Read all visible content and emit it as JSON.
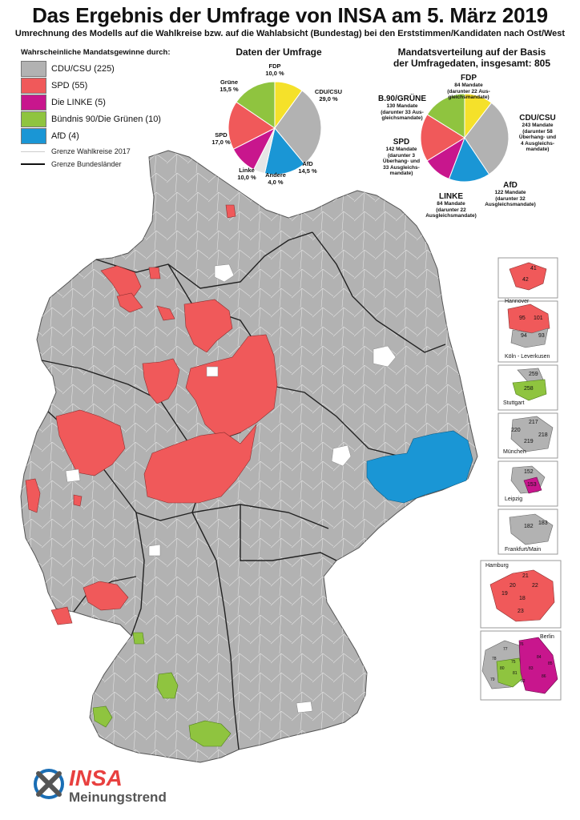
{
  "title": "Das Ergebnis der Umfrage von INSA am 5. März 2019",
  "subtitle": "Umrechnung des Modells auf die Wahlkreise bzw. auf die Wahlabsicht (Bundestag) bei den Erststimmen/Kandidaten nach Ost/West",
  "legend": {
    "title": "Wahrscheinliche Mandatsgewinne durch:",
    "items": [
      {
        "label": "CDU/CSU (225)",
        "color": "#b2b2b2"
      },
      {
        "label": "SPD (55)",
        "color": "#f0595a"
      },
      {
        "label": "Die LINKE (5)",
        "color": "#c8168d"
      },
      {
        "label": "Bündnis 90/Die Grünen (10)",
        "color": "#8fc43f"
      },
      {
        "label": "AfD (4)",
        "color": "#1a96d5"
      }
    ],
    "lines": [
      {
        "label": "Grenze Wahlkreise 2017"
      },
      {
        "label": "Grenze Bundesländer"
      }
    ]
  },
  "poll": {
    "title": "Daten der Umfrage",
    "slices": [
      {
        "party": "FDP",
        "value": 10.0,
        "label": "FDP",
        "pct": "10,0 %",
        "color": "#f5e12a"
      },
      {
        "party": "CDU/CSU",
        "value": 29.0,
        "label": "CDU/CSU",
        "pct": "29,0 %",
        "color": "#b2b2b2"
      },
      {
        "party": "AfD",
        "value": 14.5,
        "label": "AfD",
        "pct": "14,5 %",
        "color": "#1a96d5"
      },
      {
        "party": "Andere",
        "value": 4.0,
        "label": "Andere",
        "pct": "4,0 %",
        "color": "#e6e6e6"
      },
      {
        "party": "Linke",
        "value": 10.0,
        "label": "Linke",
        "pct": "10,0 %",
        "color": "#c8168d"
      },
      {
        "party": "SPD",
        "value": 17.0,
        "label": "SPD",
        "pct": "17,0 %",
        "color": "#f0595a"
      },
      {
        "party": "Grüne",
        "value": 15.5,
        "label": "Grüne",
        "pct": "15,5 %",
        "color": "#8fc43f"
      }
    ]
  },
  "seats": {
    "title_line1": "Mandatsverteilung auf der Basis",
    "title_line2": "der Umfragedaten, insgesamt: 805",
    "slices": [
      {
        "party": "FDP",
        "value": 84,
        "name": "FDP",
        "lines": [
          "84 Mandate",
          "(darunter 22 Aus-",
          "gleichsmandate)"
        ],
        "color": "#f5e12a"
      },
      {
        "party": "CDU/CSU",
        "value": 243,
        "name": "CDU/CSU",
        "lines": [
          "243 Mandate",
          "(darunter 58",
          "Überhang- und",
          "4 Ausgleichs-",
          "mandate)"
        ],
        "color": "#b2b2b2"
      },
      {
        "party": "AfD",
        "value": 122,
        "name": "AfD",
        "lines": [
          "122 Mandate",
          "(darunter 32",
          "Ausgleichsmandate)"
        ],
        "color": "#1a96d5"
      },
      {
        "party": "LINKE",
        "value": 84,
        "name": "LINKE",
        "lines": [
          "84 Mandate",
          "(darunter 22",
          "Ausgleichsmandate)"
        ],
        "color": "#c8168d"
      },
      {
        "party": "SPD",
        "value": 142,
        "name": "SPD",
        "lines": [
          "142 Mandate",
          "(darunter 3",
          "Überhang- und",
          "33 Ausgleichs-",
          "mandate)"
        ],
        "color": "#f0595a"
      },
      {
        "party": "B.90/GRÜNE",
        "value": 130,
        "name": "B.90/GRÜNE",
        "lines": [
          "130 Mandate",
          "(darunter 33 Aus-",
          "gleichsmandate)"
        ],
        "color": "#8fc43f"
      }
    ]
  },
  "insets": [
    {
      "name": "Hannover",
      "numbers": [
        "41",
        "42"
      ]
    },
    {
      "name": "Köln -  Leverkusen",
      "numbers": [
        "95",
        "101",
        "94",
        "93"
      ]
    },
    {
      "name": "Stuttgart",
      "numbers": [
        "259",
        "258"
      ]
    },
    {
      "name": "München",
      "numbers": [
        "217",
        "220",
        "218",
        "219"
      ]
    },
    {
      "name": "Leipzig",
      "numbers": [
        "152",
        "153"
      ]
    },
    {
      "name": "Frankfurt/Main",
      "numbers": [
        "182",
        "183"
      ]
    },
    {
      "name": "Hamburg",
      "numbers": [
        "21",
        "20",
        "22",
        "19",
        "18",
        "23"
      ]
    },
    {
      "name": "Berlin",
      "numbers": [
        "76",
        "77",
        "75",
        "84",
        "80",
        "81",
        "82",
        "83",
        "79",
        "78",
        "86",
        "85"
      ]
    }
  ],
  "logo": {
    "brand": "INSA",
    "sub": "Meinungstrend"
  }
}
